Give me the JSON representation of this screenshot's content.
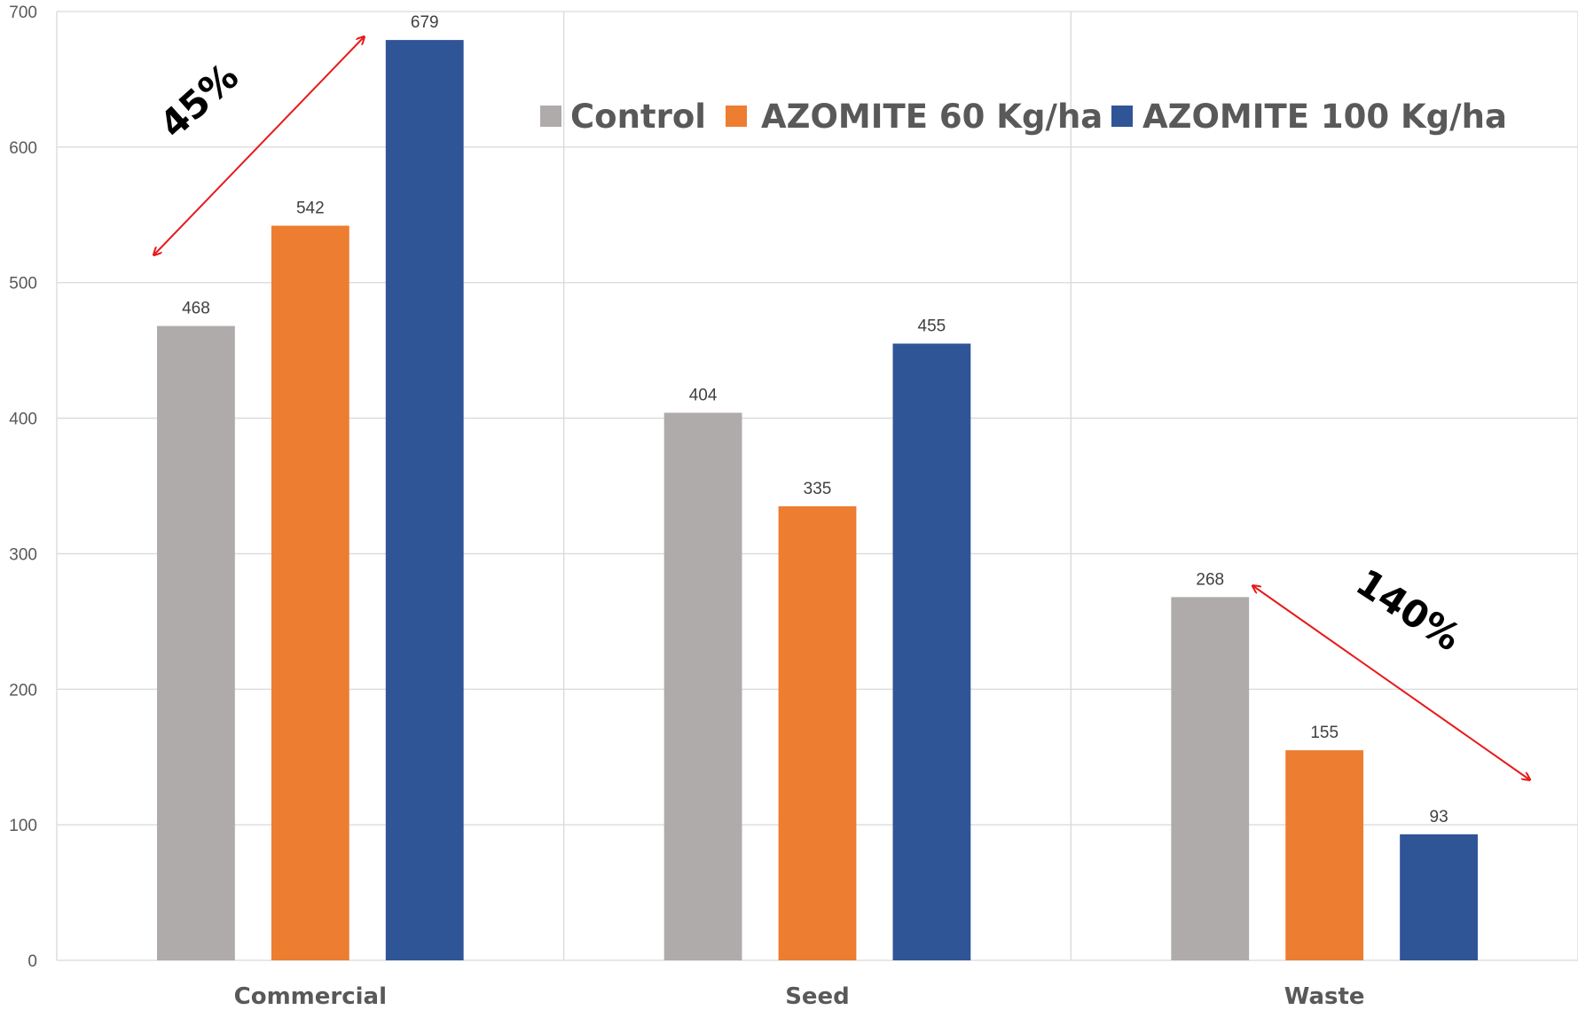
{
  "chart_data": {
    "type": "bar",
    "categories": [
      "Commercial",
      "Seed",
      "Waste"
    ],
    "series": [
      {
        "name": "Control",
        "color": "#AFABAA",
        "values": [
          468,
          404,
          268
        ]
      },
      {
        "name": "AZOMITE 60 Kg/ha",
        "color": "#ED7D31",
        "values": [
          542,
          335,
          155
        ]
      },
      {
        "name": "AZOMITE 100 Kg/ha",
        "color": "#2F5597",
        "values": [
          679,
          455,
          93
        ]
      }
    ],
    "ylim": [
      0,
      700
    ],
    "yticks": [
      0,
      100,
      200,
      300,
      400,
      500,
      600,
      700
    ],
    "grid": true,
    "legend_position": "top",
    "data_labels": true,
    "annotations": [
      {
        "text": "45%",
        "color": "#000000",
        "arrow_color": "#E8191B"
      },
      {
        "text": "140%",
        "color": "#000000",
        "arrow_color": "#E8191B"
      }
    ]
  }
}
